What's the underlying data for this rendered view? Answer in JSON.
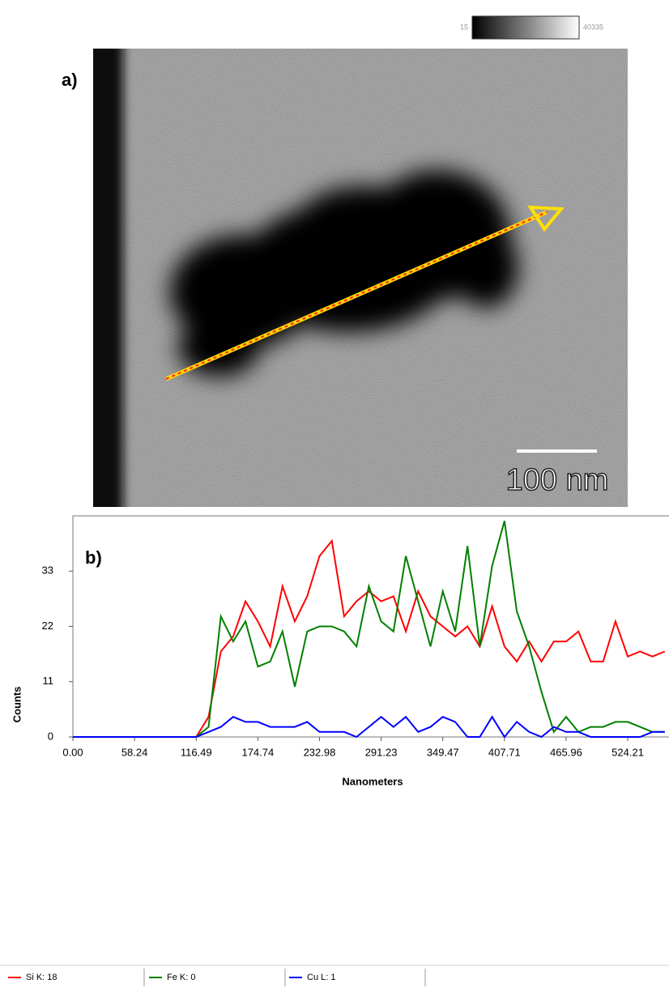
{
  "image_panel": {
    "label": "a)",
    "scale_bar": "100 nm",
    "colorbar_min": "15",
    "colorbar_max": "40335"
  },
  "chart_data": {
    "type": "line",
    "annotation": "b)",
    "x_label": "Nanometers",
    "y_label": "Counts",
    "x": [
      0,
      11.65,
      23.3,
      34.95,
      46.6,
      58.25,
      69.9,
      81.55,
      93.2,
      104.85,
      116.5,
      128.15,
      139.8,
      151.45,
      163.1,
      174.75,
      186.4,
      198.05,
      209.7,
      221.35,
      233,
      244.65,
      256.3,
      267.95,
      279.6,
      291.25,
      302.9,
      314.55,
      326.2,
      337.85,
      349.5,
      361.15,
      372.8,
      384.45,
      396.1,
      407.75,
      419.4,
      431.05,
      442.7,
      454.35,
      466,
      477.65,
      489.3,
      500.95,
      512.6,
      524.25,
      535.9,
      547.55,
      559.2
    ],
    "series": [
      {
        "name": "Si K: 18",
        "color": "#ff0000",
        "values": [
          0,
          0,
          0,
          0,
          0,
          0,
          0,
          0,
          0,
          0,
          0,
          4,
          17,
          20,
          27,
          23,
          18,
          30,
          23,
          28,
          36,
          39,
          24,
          27,
          29,
          27,
          28,
          21,
          29,
          24,
          22,
          20,
          22,
          18,
          26,
          18,
          15,
          19,
          15,
          19,
          19,
          21,
          15,
          15,
          23,
          16,
          17,
          16,
          17
        ]
      },
      {
        "name": "Fe K: 0",
        "color": "#008000",
        "values": [
          0,
          0,
          0,
          0,
          0,
          0,
          0,
          0,
          0,
          0,
          0,
          2,
          24,
          19,
          23,
          14,
          15,
          21,
          10,
          21,
          22,
          22,
          21,
          18,
          30,
          23,
          21,
          36,
          27,
          18,
          29,
          21,
          38,
          18,
          34,
          43,
          25,
          18,
          9,
          1,
          4,
          1,
          2,
          2,
          3,
          3,
          2,
          1,
          1
        ]
      },
      {
        "name": "Cu L: 1",
        "color": "#0000ff",
        "values": [
          0,
          0,
          0,
          0,
          0,
          0,
          0,
          0,
          0,
          0,
          0,
          1,
          2,
          4,
          3,
          3,
          2,
          2,
          2,
          3,
          1,
          1,
          1,
          0,
          2,
          4,
          2,
          4,
          1,
          2,
          4,
          3,
          0,
          0,
          4,
          0,
          3,
          1,
          0,
          2,
          1,
          1,
          0,
          0,
          0,
          0,
          0,
          1,
          1
        ]
      }
    ],
    "xlim": [
      0,
      563.2
    ],
    "ylim": [
      0,
      44
    ],
    "xticks": [
      {
        "value": 0,
        "label": "0.00"
      },
      58.24,
      116.49,
      174.74,
      232.98,
      291.23,
      349.47,
      407.71,
      465.96,
      524.21
    ],
    "yticks": [
      0,
      11,
      22,
      33
    ]
  }
}
